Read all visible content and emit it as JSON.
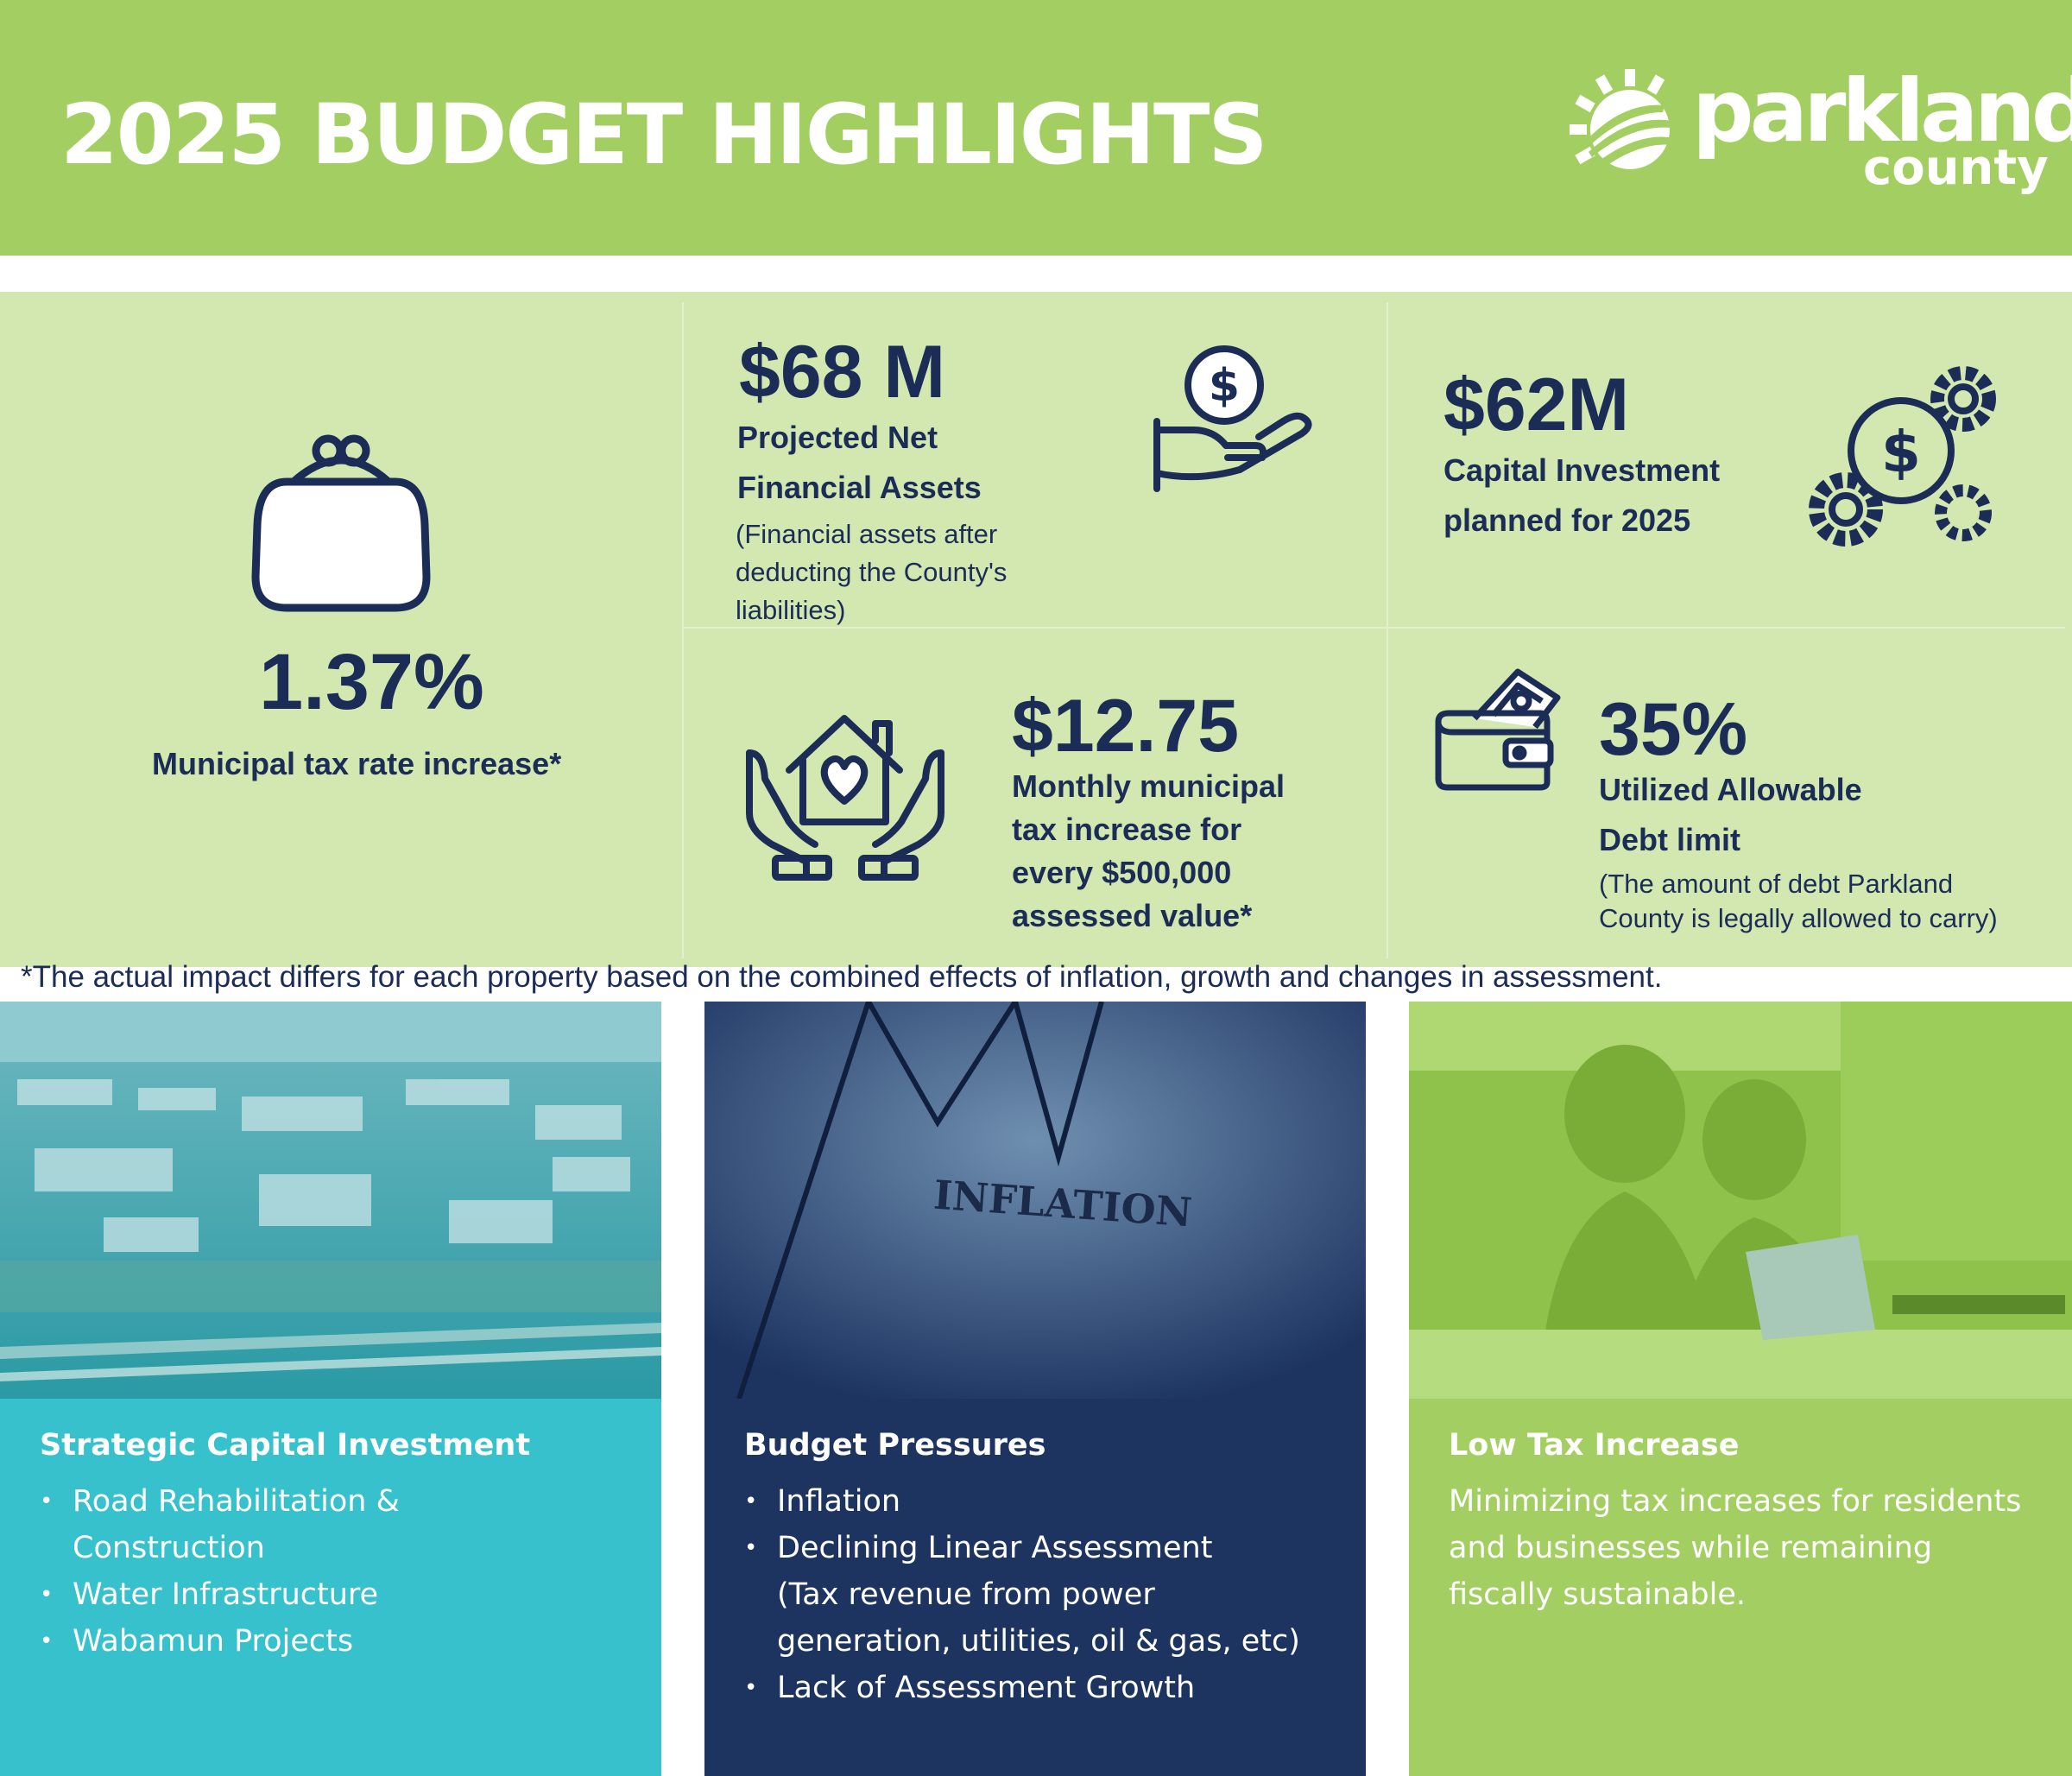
{
  "header": {
    "title": "2025 BUDGET HIGHLIGHTS",
    "logo_main": "parkland",
    "logo_sub": "county",
    "color": "#a3cf62"
  },
  "stats": {
    "tax_rate": {
      "value": "1.37%",
      "label": "Municipal tax rate increase*",
      "icon": "coin-purse-icon"
    },
    "net_assets": {
      "value": "$68 M",
      "label_line1": "Projected Net",
      "label_line2": "Financial Assets",
      "note_line1": "(Financial assets after",
      "note_line2": "deducting the County's",
      "note_line3": "liabilities)",
      "icon": "hand-coin-icon"
    },
    "capital": {
      "value": "$62M",
      "label_line1": "Capital Investment",
      "label_line2": "planned for 2025",
      "icon": "gears-dollar-icon"
    },
    "monthly": {
      "value": "$12.75",
      "label_line1": "Monthly municipal",
      "label_line2": "tax increase for",
      "label_line3": "every $500,000",
      "label_line4": "assessed value*",
      "icon": "hands-house-icon"
    },
    "debt": {
      "value": "35%",
      "label_line1": "Utilized Allowable",
      "label_line2": "Debt limit",
      "note_line1": "(The amount of debt Parkland",
      "note_line2": "County is legally allowed to carry)",
      "icon": "wallet-icon"
    }
  },
  "footnote": "*The actual impact differs for each property based on the combined effects of inflation, growth and changes in assessment.",
  "panels": {
    "capital": {
      "title": "Strategic Capital Investment",
      "items": [
        "Road Rehabilitation &",
        "Construction",
        "Water Infrastructure",
        "Wabamun Projects"
      ],
      "color": "#36c1cc"
    },
    "pressures": {
      "title": "Budget Pressures",
      "photo_text": "INFLATION",
      "items": [
        "Inflation",
        "Declining Linear Assessment",
        "(Tax revenue from power",
        "generation, utilities, oil & gas, etc)",
        "Lack of Assessment Growth"
      ],
      "color": "#1d3461"
    },
    "low_tax": {
      "title": "Low Tax Increase",
      "line1": "Minimizing tax increases for residents",
      "line2": "and businesses while remaining",
      "line3": "fiscally sustainable.",
      "color": "#a3cf62"
    }
  }
}
